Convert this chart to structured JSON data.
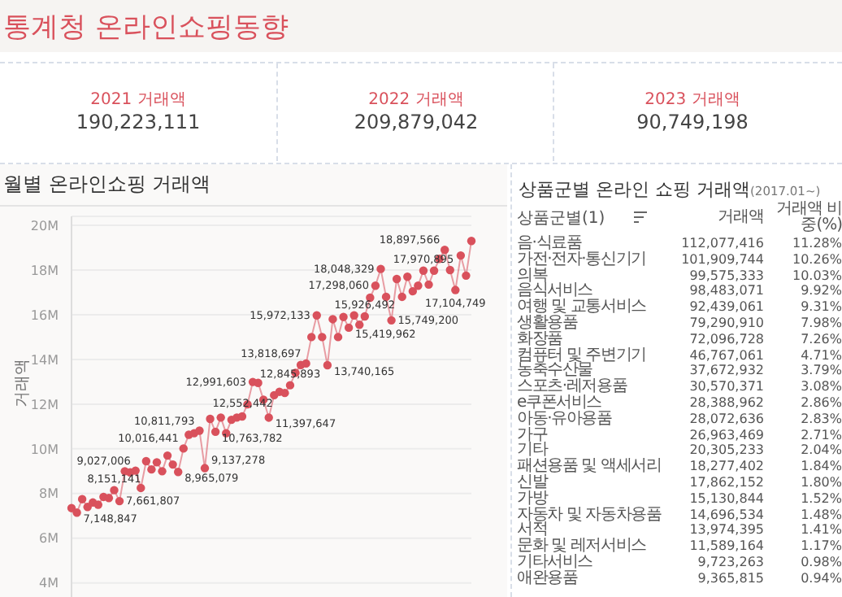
{
  "chart_data": [
    {
      "type": "other",
      "title": "통계청 온라인쇼핑동향",
      "categories": [
        "2021 거래액",
        "2022 거래액",
        "2023 거래액"
      ],
      "values": [
        190223111,
        209879042,
        90749198
      ],
      "value_labels": [
        "190,223,111",
        "209,879,042",
        "90,749,198"
      ]
    },
    {
      "type": "line",
      "title": "월별 온라인쇼핑 거래액",
      "ylabel": "거래액",
      "color": "#d9515c",
      "marker": "circle",
      "grid": "y",
      "tick_labels": "y",
      "ylim": [
        3300000,
        20400000
      ],
      "yticks": [
        {
          "value": 4000000,
          "label": "4M"
        },
        {
          "value": 6000000,
          "label": "6M"
        },
        {
          "value": 8000000,
          "label": "8M"
        },
        {
          "value": 10000000,
          "label": "10M"
        },
        {
          "value": 12000000,
          "label": "12M"
        },
        {
          "value": 14000000,
          "label": "14M"
        },
        {
          "value": 16000000,
          "label": "16M"
        },
        {
          "value": 18000000,
          "label": "18M"
        },
        {
          "value": 20000000,
          "label": "20M"
        }
      ],
      "categories": [
        null,
        null,
        null,
        null,
        null,
        null,
        null,
        null,
        null,
        null,
        null,
        null,
        null,
        null,
        null,
        null,
        null,
        null,
        null,
        null,
        null,
        null,
        null,
        null,
        null,
        null,
        null,
        null,
        null,
        null,
        null,
        null,
        null,
        null,
        null,
        null,
        null,
        null,
        null,
        null,
        null,
        null,
        null,
        null,
        null,
        null,
        null,
        null,
        null,
        null,
        null,
        null,
        null,
        null,
        null,
        null,
        null,
        null,
        null,
        null,
        null,
        null,
        null,
        null,
        null,
        null,
        null,
        null,
        null,
        null,
        null,
        null,
        null,
        null,
        null,
        null
      ],
      "values": [
        7350000,
        7148847,
        7750000,
        7400000,
        7600000,
        7500000,
        7850000,
        7800000,
        8151141,
        7661807,
        9000000,
        8950000,
        9027006,
        8250000,
        9450000,
        9080000,
        9400000,
        9000000,
        9700000,
        9300000,
        8965079,
        10016441,
        10630000,
        10700000,
        10811793,
        9137278,
        11340000,
        10763782,
        11400000,
        10700000,
        11300000,
        11400000,
        11450000,
        11990000,
        12991603,
        12950000,
        12200000,
        11397647,
        12400000,
        12552442,
        12500000,
        12845893,
        13400000,
        13750000,
        13818697,
        15000000,
        15972133,
        15000000,
        13740165,
        15800000,
        15000000,
        15900000,
        15419962,
        15970000,
        15550000,
        15926492,
        16760000,
        17298060,
        18048329,
        16800000,
        15749200,
        17600000,
        16800000,
        17700000,
        17050000,
        17300000,
        17970895,
        17350000,
        17970000,
        18500000,
        18897566,
        18000000,
        17104749,
        18650000,
        17750000,
        19300000
      ],
      "value_labels": [
        null,
        "7,148,847",
        null,
        null,
        null,
        null,
        null,
        null,
        "8,151,141",
        "7,661,807",
        null,
        null,
        "9,027,006",
        null,
        null,
        null,
        null,
        null,
        null,
        null,
        "8,965,079",
        "10,016,441",
        null,
        null,
        "10,811,793",
        "9,137,278",
        null,
        "10,763,782",
        null,
        null,
        null,
        null,
        null,
        null,
        "12,991,603",
        null,
        null,
        "11,397,647",
        null,
        "12,552,442",
        null,
        "12,845,893",
        null,
        null,
        "13,818,697",
        null,
        "15,972,133",
        null,
        "13,740,165",
        null,
        null,
        null,
        "15,419,962",
        null,
        null,
        "15,926,492",
        null,
        "17,298,060",
        "18,048,329",
        null,
        "15,749,200",
        null,
        null,
        null,
        null,
        null,
        "17,970,895",
        null,
        null,
        null,
        "18,897,566",
        null,
        "17,104,749",
        null,
        null,
        null
      ]
    },
    {
      "type": "other",
      "title": "상품군별 온라인 쇼핑 거래액",
      "subtitle": "(2017.01~)",
      "xlabel": "상품군별(1)",
      "categories": [
        "음·식료품",
        "가전·전자·통신기기",
        "의복",
        "음식서비스",
        "여행 및 교통서비스",
        "생활용품",
        "화장품",
        "컴퓨터 및 주변기기",
        "농축수산물",
        "스포츠·레저용품",
        "e쿠폰서비스",
        "아동·유아용품",
        "가구",
        "기타",
        "패션용품 및 액세서리",
        "신발",
        "가방",
        "자동차 및 자동차용품",
        "서적",
        "문화 및 레저서비스",
        "기타서비스",
        "애완용품"
      ],
      "series": [
        {
          "name": "거래액",
          "values": [
            112077416,
            101909744,
            99575333,
            98483071,
            92439061,
            79290910,
            72096728,
            46767061,
            37672932,
            30570371,
            28388962,
            28072636,
            26963469,
            20305233,
            18277402,
            17862152,
            15130844,
            14696534,
            13974395,
            11589164,
            9723263,
            9365815
          ],
          "value_labels": [
            "112,077,416",
            "101,909,744",
            "99,575,333",
            "98,483,071",
            "92,439,061",
            "79,290,910",
            "72,096,728",
            "46,767,061",
            "37,672,932",
            "30,570,371",
            "28,388,962",
            "28,072,636",
            "26,963,469",
            "20,305,233",
            "18,277,402",
            "17,862,152",
            "15,130,844",
            "14,696,534",
            "13,974,395",
            "11,589,164",
            "9,723,263",
            "9,365,815"
          ]
        },
        {
          "name": "거래액 비중(%)",
          "values": [
            11.28,
            10.26,
            10.03,
            9.92,
            9.31,
            7.98,
            7.26,
            4.71,
            3.79,
            3.08,
            2.86,
            2.83,
            2.71,
            2.04,
            1.84,
            1.8,
            1.52,
            1.48,
            1.41,
            1.17,
            0.98,
            0.94
          ],
          "value_labels": [
            "11.28%",
            "10.26%",
            "10.03%",
            "9.92%",
            "9.31%",
            "7.98%",
            "7.26%",
            "4.71%",
            "3.79%",
            "3.08%",
            "2.86%",
            "2.83%",
            "2.71%",
            "2.04%",
            "1.84%",
            "1.80%",
            "1.52%",
            "1.48%",
            "1.41%",
            "1.17%",
            "0.98%",
            "0.94%"
          ]
        }
      ]
    }
  ]
}
